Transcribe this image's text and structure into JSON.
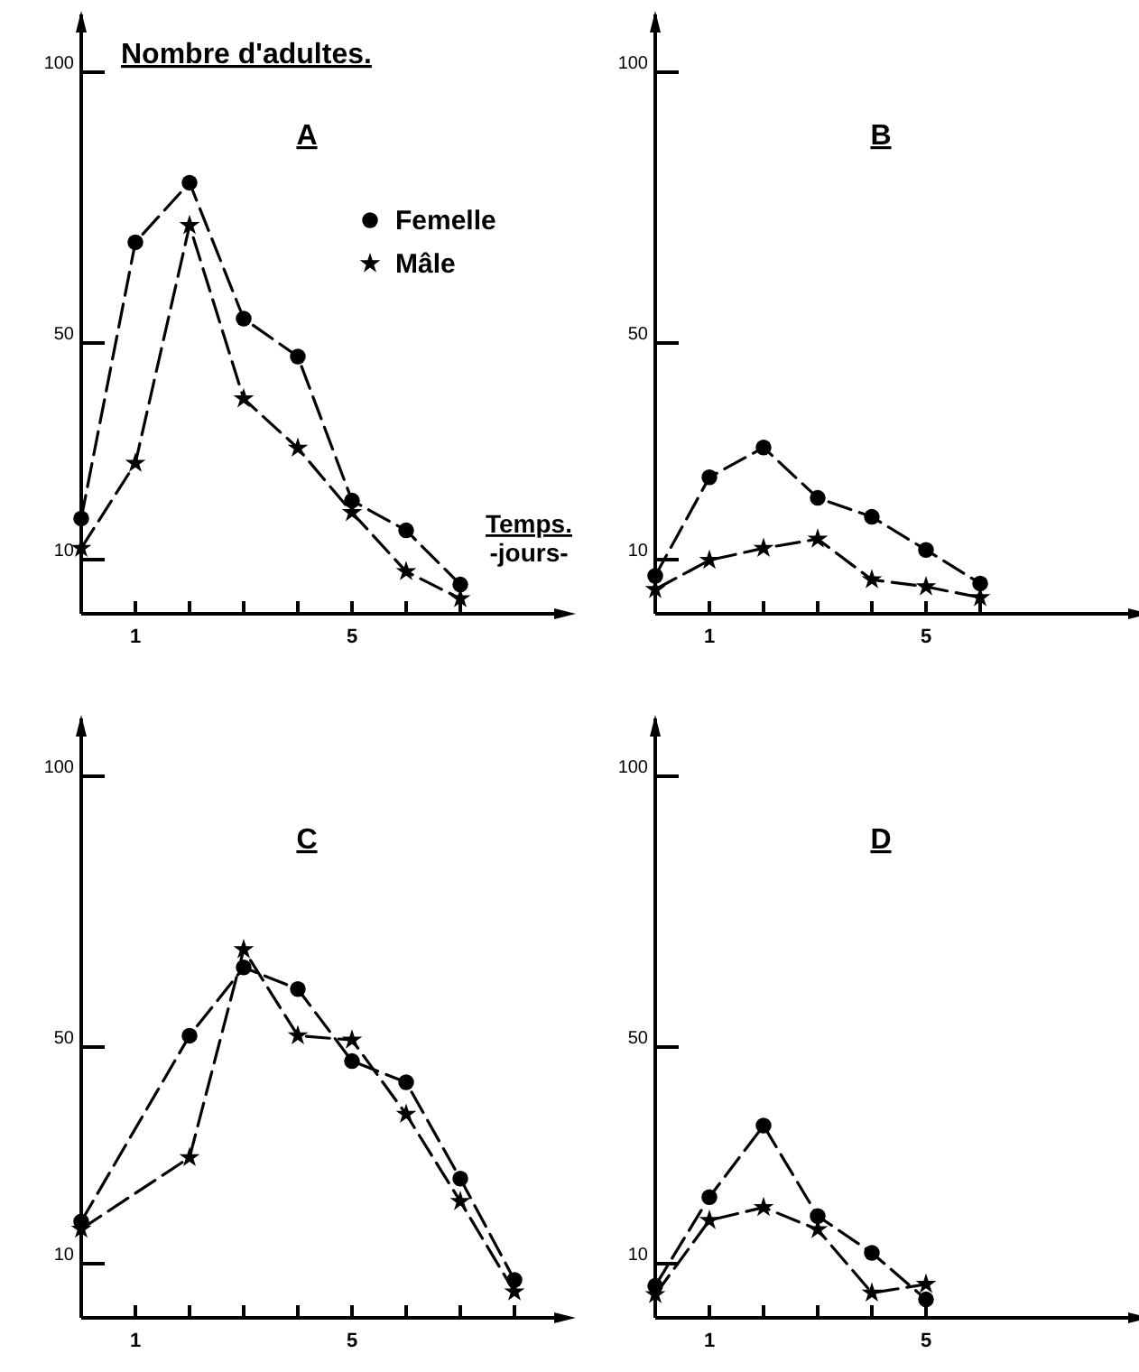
{
  "chart_data": [
    {
      "type": "line",
      "title": "A",
      "ylabel": "Nombre d'adultes.",
      "xlabel": "Temps.\n-jours-",
      "x": [
        0,
        1,
        2,
        3,
        4,
        5,
        6,
        7
      ],
      "xlim": [
        0,
        9
      ],
      "ylim": [
        0,
        110
      ],
      "xticks": [
        {
          "value": 1,
          "label": "1"
        },
        {
          "value": 2,
          "label": null
        },
        {
          "value": 3,
          "label": null
        },
        {
          "value": 4,
          "label": null
        },
        {
          "value": 5,
          "label": "5"
        },
        {
          "value": 6,
          "label": null
        },
        {
          "value": 7,
          "label": null
        }
      ],
      "yticks": [
        10,
        50,
        100
      ],
      "legend": "top right",
      "series": [
        {
          "name": "Femelle",
          "color": "#000000",
          "marker": "circle",
          "line_style": "dashed",
          "values": [
            17.6,
            68.6,
            79.6,
            54.5,
            47.5,
            20.9,
            15.4,
            5.4
          ]
        },
        {
          "name": "Mâle",
          "color": "#000000",
          "marker": "star",
          "line_style": "dashed",
          "values": [
            12.1,
            27.8,
            71.7,
            39.7,
            30.6,
            18.7,
            7.8,
            2.8
          ]
        }
      ]
    },
    {
      "type": "line",
      "title": "B",
      "x": [
        0,
        1,
        2,
        3,
        4,
        5,
        6
      ],
      "xlim": [
        0,
        9
      ],
      "ylim": [
        0,
        110
      ],
      "xticks": [
        {
          "value": 1,
          "label": "1"
        },
        {
          "value": 2,
          "label": null
        },
        {
          "value": 3,
          "label": null
        },
        {
          "value": 4,
          "label": null
        },
        {
          "value": 5,
          "label": "5"
        },
        {
          "value": 6,
          "label": null
        }
      ],
      "yticks": [
        10,
        50,
        100
      ],
      "series": [
        {
          "color": "#000000",
          "marker": "circle",
          "line_style": "dashed",
          "values": [
            7,
            25.2,
            30.7,
            21.4,
            17.9,
            11.8,
            5.6
          ]
        },
        {
          "color": "#000000",
          "marker": "star",
          "line_style": "dashed",
          "values": [
            4.5,
            9.9,
            12.1,
            13.8,
            6.3,
            5,
            3
          ]
        }
      ]
    },
    {
      "type": "line",
      "title": "C",
      "x": [
        0,
        2,
        3,
        4,
        5,
        6,
        7,
        8
      ],
      "xlim": [
        0,
        9
      ],
      "ylim": [
        0,
        110
      ],
      "xticks": [
        {
          "value": 1,
          "label": "1"
        },
        {
          "value": 2,
          "label": null
        },
        {
          "value": 3,
          "label": null
        },
        {
          "value": 4,
          "label": null
        },
        {
          "value": 5,
          "label": "5"
        },
        {
          "value": 6,
          "label": null
        },
        {
          "value": 7,
          "label": null
        },
        {
          "value": 8,
          "label": null
        }
      ],
      "yticks": [
        10,
        50,
        100
      ],
      "series": [
        {
          "color": "#000000",
          "marker": "circle",
          "line_style": "dashed",
          "values": [
            17.8,
            52.1,
            64.7,
            60.7,
            47.4,
            43.5,
            25.7,
            7
          ]
        },
        {
          "color": "#000000",
          "marker": "star",
          "line_style": "dashed",
          "values": [
            16.4,
            29.6,
            68,
            52.1,
            51.3,
            37.6,
            21.5,
            4.8
          ]
        }
      ]
    },
    {
      "type": "line",
      "title": "D",
      "x": [
        0,
        1,
        2,
        3,
        4,
        5
      ],
      "xlim": [
        0,
        9
      ],
      "ylim": [
        0,
        110
      ],
      "xticks": [
        {
          "value": 1,
          "label": "1"
        },
        {
          "value": 2,
          "label": null
        },
        {
          "value": 3,
          "label": null
        },
        {
          "value": 4,
          "label": null
        },
        {
          "value": 5,
          "label": "5"
        }
      ],
      "yticks": [
        10,
        50,
        100
      ],
      "series": [
        {
          "color": "#000000",
          "marker": "circle",
          "line_style": "dashed",
          "values": [
            5.9,
            22.3,
            35.5,
            18.8,
            12,
            3.4
          ]
        },
        {
          "color": "#000000",
          "marker": "star",
          "line_style": "dashed",
          "values": [
            4.3,
            18,
            20.4,
            16.3,
            4.6,
            6.2
          ]
        }
      ]
    }
  ]
}
